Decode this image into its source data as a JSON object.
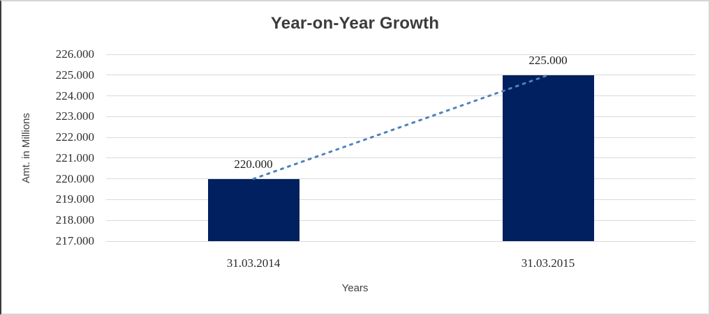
{
  "chart_data": {
    "type": "bar",
    "title": "Year-on-Year Growth",
    "xlabel": "Years",
    "ylabel": "Amt. in Millions",
    "categories": [
      "31.03.2014",
      "31.03.2015"
    ],
    "values": [
      220,
      225
    ],
    "value_labels": [
      "220.000",
      "225.000"
    ],
    "ylim": [
      217,
      226
    ],
    "ytick_step": 1,
    "ytick_labels": [
      "226.000",
      "225.000",
      "224.000",
      "223.000",
      "222.000",
      "221.000",
      "220.000",
      "219.000",
      "218.000",
      "217.000"
    ],
    "grid": true,
    "legend": "none",
    "trendline": {
      "style": "dotted",
      "between": [
        "31.03.2014",
        "31.03.2015"
      ]
    },
    "colors": {
      "bar": "#002060",
      "trendline": "#4e81bd",
      "gridline": "#d9d9d9",
      "title_text": "#3b3b3b",
      "axis_text": "#303030"
    }
  }
}
